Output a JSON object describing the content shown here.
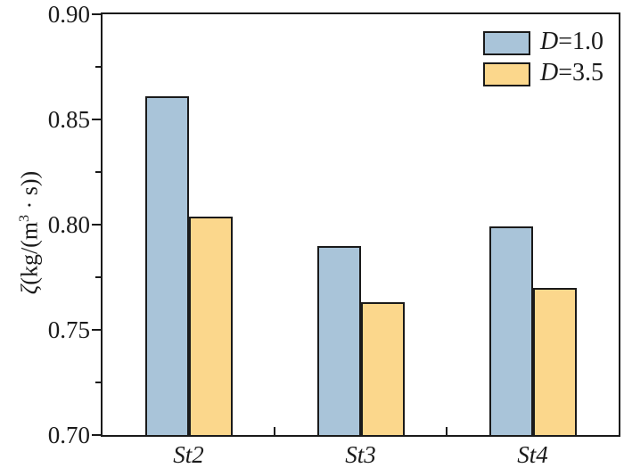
{
  "chart_data": {
    "type": "bar",
    "title": "",
    "categories": [
      "St2",
      "St3",
      "St4"
    ],
    "series": [
      {
        "name": "D=1.0",
        "color": "#A9C4D9",
        "values": [
          0.861,
          0.79,
          0.799
        ]
      },
      {
        "name": "D=3.5",
        "color": "#FBD78C",
        "values": [
          0.804,
          0.763,
          0.77
        ]
      }
    ],
    "xlabel": "",
    "ylabel": "ζ(kg/(m³·s))",
    "ylim": [
      0.7,
      0.9
    ],
    "y_major_tick_step": 0.05,
    "y_minor_tick_step": 0.025,
    "y_tick_labels": [
      "0.70",
      "0.75",
      "0.80",
      "0.85",
      "0.90"
    ],
    "grid": false,
    "legend_position": "top-right-inside",
    "bar_outline_color": "#1a1a1a",
    "axis_color": "#1a1a1a"
  },
  "axis": {
    "ylabel_zeta": "ζ",
    "ylabel_main": "(kg/(m",
    "ylabel_sup": "3",
    "ylabel_tail": " · s))"
  },
  "legend": {
    "items": [
      {
        "symbol_var": "D",
        "value_text": "=1.0",
        "color": "#A9C4D9"
      },
      {
        "symbol_var": "D",
        "value_text": "=3.5",
        "color": "#FBD78C"
      }
    ]
  }
}
